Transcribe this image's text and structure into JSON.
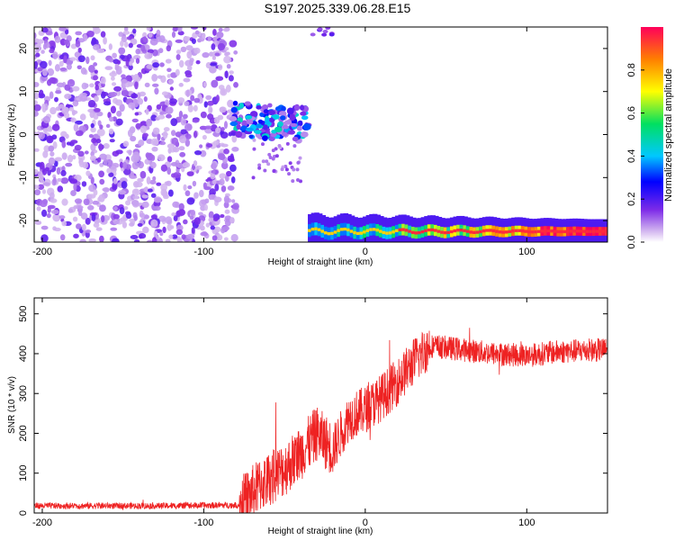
{
  "title": "S197.2025.339.06.28.E15",
  "chart_data": [
    {
      "type": "heatmap",
      "name": "spectrogram",
      "xlabel": "Height of straight line (km)",
      "ylabel": "Frequency (Hz)",
      "xlim": [
        -205,
        150
      ],
      "ylim": [
        -25,
        25
      ],
      "xticks": [
        -200,
        -100,
        0,
        100
      ],
      "yticks": [
        -20,
        -10,
        0,
        10,
        20
      ],
      "colorbar": {
        "label": "Normalized spectral amplitude",
        "range": [
          0,
          1
        ],
        "ticks": [
          0.0,
          0.2,
          0.4,
          0.6,
          0.8
        ],
        "tick_labels": [
          "0.0",
          "0.2",
          "0.4",
          "0.6",
          "0.8"
        ]
      },
      "features": [
        {
          "desc": "broadband noise",
          "x_range": [
            -205,
            -80
          ],
          "y_range": [
            -25,
            25
          ],
          "amplitude": [
            0.05,
            0.2
          ]
        },
        {
          "desc": "blob",
          "x_range": [
            -82,
            -35
          ],
          "y_range": [
            -2,
            8
          ],
          "amplitude_peak": 0.4
        },
        {
          "desc": "low-frequency tone",
          "x_range": [
            -35,
            150
          ],
          "y_center": -22.5,
          "amplitude": [
            0.3,
            1.0
          ]
        }
      ]
    },
    {
      "type": "line",
      "name": "snr",
      "xlabel": "Height of straight line (km)",
      "ylabel": "SNR (10 * v/v)",
      "xlim": [
        -205,
        150
      ],
      "ylim": [
        0,
        540
      ],
      "xticks": [
        -200,
        -100,
        0,
        100
      ],
      "yticks": [
        0,
        100,
        200,
        300,
        400,
        500
      ],
      "color": "#ee2222",
      "trend": {
        "x": [
          -205,
          -120,
          -78,
          -65,
          -50,
          -40,
          -30,
          -20,
          -10,
          0,
          10,
          20,
          30,
          40,
          60,
          80,
          100,
          120,
          150
        ],
        "y": [
          18,
          18,
          20,
          70,
          110,
          150,
          200,
          160,
          240,
          260,
          290,
          330,
          380,
          420,
          410,
          400,
          395,
          405,
          410
        ]
      }
    }
  ]
}
